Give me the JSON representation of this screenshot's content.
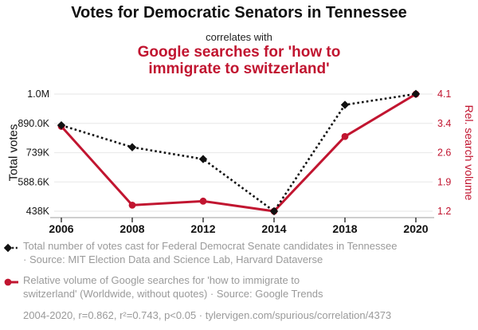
{
  "header": {
    "title": "Votes for Democratic Senators in Tennessee",
    "connector": "correlates with",
    "subtitle": "Google searches for 'how to\nimmigrate to switzerland'"
  },
  "chart_data": {
    "type": "line",
    "categories": [
      "2006",
      "2008",
      "2012",
      "2014",
      "2018",
      "2020"
    ],
    "series": [
      {
        "name": "Total number of votes cast for Federal Democrat Senate candidates in Tennessee",
        "axis": "left",
        "color": "#111111",
        "line_style": "dotted",
        "marker": "diamond",
        "values": [
          880000,
          767000,
          706000,
          438000,
          985000,
          1041000
        ]
      },
      {
        "name": "Relative volume of Google searches for 'how to immigrate to switzerland'",
        "axis": "right",
        "color": "#c11530",
        "line_style": "solid",
        "marker": "circle",
        "values": [
          3.3,
          1.35,
          1.45,
          1.2,
          3.05,
          4.1
        ]
      }
    ],
    "left_axis": {
      "label": "Total votes",
      "tick_labels": [
        "1.0M",
        "890.0K",
        "739K",
        "588.6K",
        "438K"
      ],
      "min": 438000,
      "max": 1040400
    },
    "right_axis": {
      "label": "Rel. search volume",
      "tick_labels": [
        "4.1",
        "3.4",
        "2.6",
        "1.9",
        "1.2"
      ],
      "min": 1.2,
      "max": 4.1
    },
    "grid": true,
    "legend_position": "bottom"
  },
  "legend": {
    "items": [
      {
        "label": "Total number of votes cast for Federal Democrat Senate candidates in Tennessee\n· Source: MIT Election Data and Science Lab, Harvard Dataverse",
        "marker": "black-diamond-dotted-line"
      },
      {
        "label": "Relative volume of Google searches for 'how to immigrate to\nswitzerland' (Worldwide, without quotes) · Source: Google Trends",
        "marker": "red-circle-solid-line"
      }
    ],
    "footer": "2004-2020, r=0.862, r²=0.743, p<0.05 · tylervigen.com/spurious/correlation/4373"
  },
  "colors": {
    "accent_red": "#c11530",
    "series_black": "#111111",
    "legend_gray": "#9a9a9a",
    "grid_gray": "#ebebeb",
    "axis_gray": "#9e9e9e"
  }
}
